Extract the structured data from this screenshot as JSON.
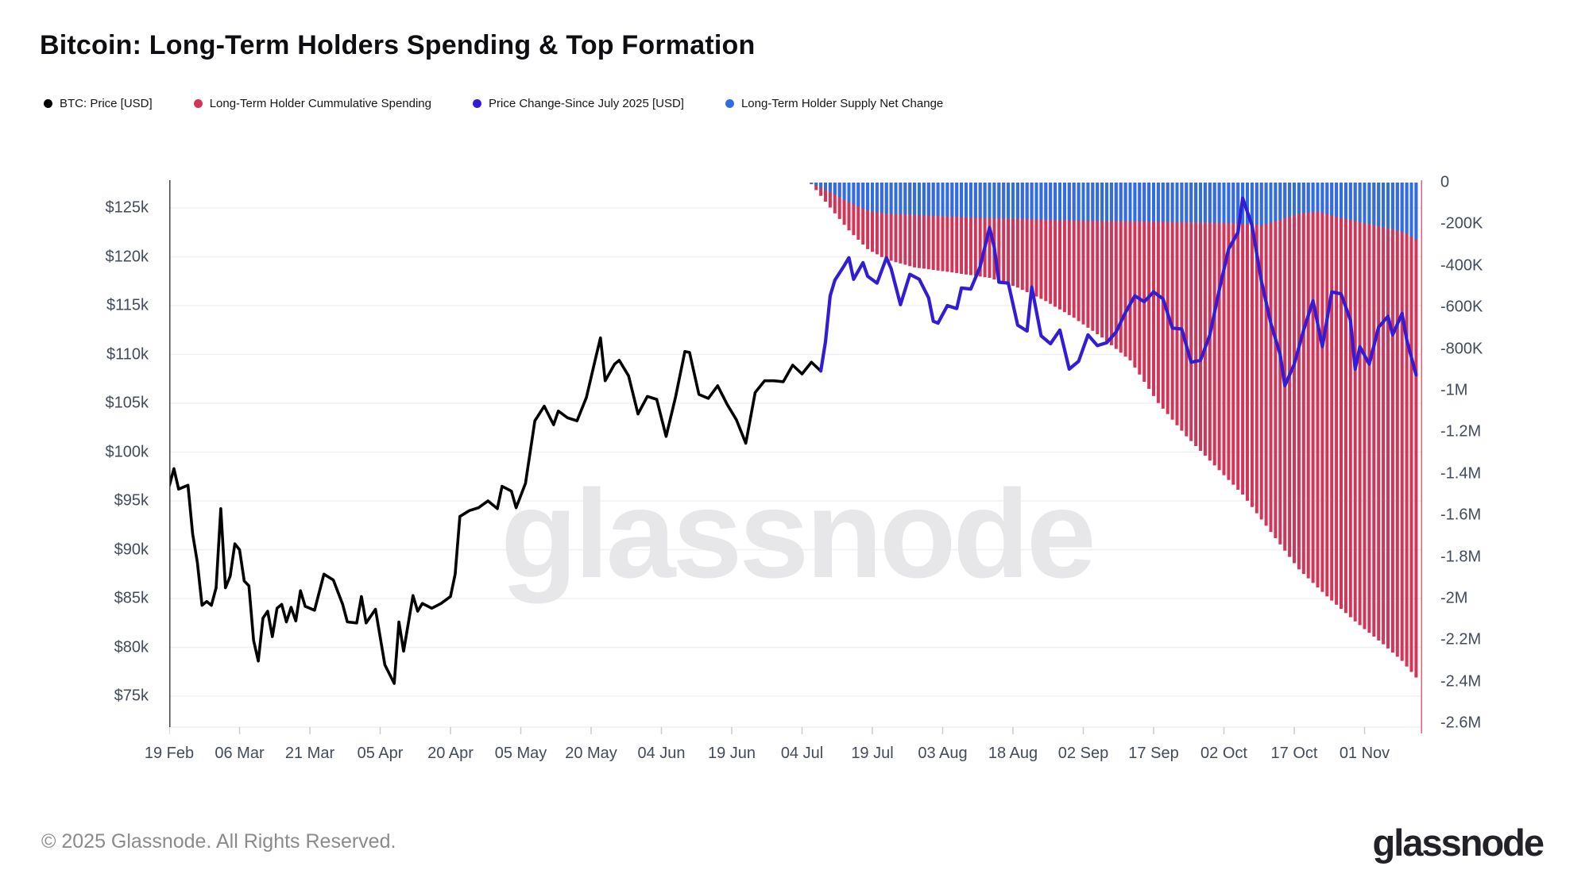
{
  "header": {
    "title": "Bitcoin: Long-Term Holders Spending & Top Formation"
  },
  "legend": {
    "items": [
      {
        "label": "BTC: Price [USD]",
        "color": "#000000"
      },
      {
        "label": "Long-Term Holder Cummulative Spending",
        "color": "#d23558"
      },
      {
        "label": "Price Change-Since July 2025 [USD]",
        "color": "#321cd4"
      },
      {
        "label": "Long-Term Holder Supply Net Change",
        "color": "#2e6ee4"
      }
    ]
  },
  "chart_data": {
    "type": "mixed",
    "title": "Bitcoin: Long-Term Holders Spending & Top Formation",
    "watermark": "glassnode",
    "grid": "horizontal-only",
    "colors": {
      "price": "#000000",
      "spending": "#d23558",
      "price_change": "#321cd4",
      "net_change": "#2e6ee4",
      "grid": "#f0f0f3",
      "axis_text": "#424b59",
      "axis_line": "#444444",
      "edge_marker": "#e0617a",
      "watermark": "#e7e7ea"
    },
    "left_axis": {
      "title": "BTC price in USD (thousands)",
      "tick_labels": [
        "$125k",
        "$120k",
        "$115k",
        "$110k",
        "$105k",
        "$100k",
        "$95k",
        "$90k",
        "$85k",
        "$80k",
        "$75k"
      ],
      "tick_values": [
        125,
        120,
        115,
        110,
        105,
        100,
        95,
        90,
        85,
        80,
        75
      ],
      "visible_range": [
        71.8,
        127.9
      ]
    },
    "right_axis": {
      "title": "BTC supply change",
      "tick_labels": [
        "0",
        "-200K",
        "-400K",
        "-600K",
        "-800K",
        "-1M",
        "-1.2M",
        "-1.4M",
        "-1.6M",
        "-1.8M",
        "-2M",
        "-2.2M",
        "-2.4M",
        "-2.6M"
      ],
      "tick_values": [
        0,
        -200,
        -400,
        -600,
        -800,
        -1000,
        -1200,
        -1400,
        -1600,
        -1800,
        -2000,
        -2200,
        -2400,
        -2600
      ],
      "unit": "K BTC"
    },
    "x_axis": {
      "ticks": [
        {
          "label": "19 Feb",
          "day": 0
        },
        {
          "label": "06 Mar",
          "day": 15
        },
        {
          "label": "21 Mar",
          "day": 30
        },
        {
          "label": "05 Apr",
          "day": 45
        },
        {
          "label": "20 Apr",
          "day": 60
        },
        {
          "label": "05 May",
          "day": 75
        },
        {
          "label": "20 May",
          "day": 90
        },
        {
          "label": "04 Jun",
          "day": 105
        },
        {
          "label": "19 Jun",
          "day": 120
        },
        {
          "label": "04 Jul",
          "day": 135
        },
        {
          "label": "19 Jul",
          "day": 150
        },
        {
          "label": "03 Aug",
          "day": 165
        },
        {
          "label": "18 Aug",
          "day": 180
        },
        {
          "label": "02 Sep",
          "day": 195
        },
        {
          "label": "17 Sep",
          "day": 210
        },
        {
          "label": "02 Oct",
          "day": 225
        },
        {
          "label": "17 Oct",
          "day": 240
        },
        {
          "label": "01 Nov",
          "day": 255
        }
      ],
      "day0_date": "19 Feb 2025"
    },
    "series": [
      {
        "name": "BTC: Price [USD]",
        "type": "line",
        "axis": "left",
        "color": "#000000",
        "points": [
          [
            0,
            96.5
          ],
          [
            1,
            98.3
          ],
          [
            2,
            96.2
          ],
          [
            4,
            96.6
          ],
          [
            5,
            91.6
          ],
          [
            6,
            88.7
          ],
          [
            7,
            84.3
          ],
          [
            8,
            84.7
          ],
          [
            9,
            84.3
          ],
          [
            10,
            86.1
          ],
          [
            11,
            94.2
          ],
          [
            12,
            86.1
          ],
          [
            13,
            87.3
          ],
          [
            14,
            90.6
          ],
          [
            15,
            90.0
          ],
          [
            16,
            86.8
          ],
          [
            17,
            86.3
          ],
          [
            18,
            80.7
          ],
          [
            19,
            78.6
          ],
          [
            20,
            83.0
          ],
          [
            21,
            83.7
          ],
          [
            22,
            81.1
          ],
          [
            23,
            84.0
          ],
          [
            24,
            84.4
          ],
          [
            25,
            82.6
          ],
          [
            26,
            84.1
          ],
          [
            27,
            82.7
          ],
          [
            28,
            85.8
          ],
          [
            29,
            84.2
          ],
          [
            31,
            83.8
          ],
          [
            33,
            87.5
          ],
          [
            35,
            86.9
          ],
          [
            37,
            84.4
          ],
          [
            38,
            82.6
          ],
          [
            40,
            82.5
          ],
          [
            41,
            85.2
          ],
          [
            42,
            82.5
          ],
          [
            44,
            83.9
          ],
          [
            46,
            78.2
          ],
          [
            48,
            76.3
          ],
          [
            49,
            82.6
          ],
          [
            50,
            79.6
          ],
          [
            52,
            85.3
          ],
          [
            53,
            83.7
          ],
          [
            54,
            84.5
          ],
          [
            56,
            84.0
          ],
          [
            58,
            84.5
          ],
          [
            60,
            85.2
          ],
          [
            61,
            87.5
          ],
          [
            62,
            93.4
          ],
          [
            64,
            94.0
          ],
          [
            66,
            94.3
          ],
          [
            68,
            95.0
          ],
          [
            70,
            94.2
          ],
          [
            71,
            96.5
          ],
          [
            73,
            96.0
          ],
          [
            74,
            94.3
          ],
          [
            76,
            96.8
          ],
          [
            78,
            103.2
          ],
          [
            80,
            104.7
          ],
          [
            82,
            102.8
          ],
          [
            83,
            104.2
          ],
          [
            85,
            103.5
          ],
          [
            87,
            103.2
          ],
          [
            89,
            105.6
          ],
          [
            91,
            109.7
          ],
          [
            92,
            111.7
          ],
          [
            93,
            107.3
          ],
          [
            95,
            109.0
          ],
          [
            96,
            109.4
          ],
          [
            98,
            107.8
          ],
          [
            100,
            103.9
          ],
          [
            102,
            105.7
          ],
          [
            104,
            105.4
          ],
          [
            106,
            101.6
          ],
          [
            108,
            105.6
          ],
          [
            110,
            110.3
          ],
          [
            111,
            110.2
          ],
          [
            113,
            105.9
          ],
          [
            115,
            105.5
          ],
          [
            117,
            106.8
          ],
          [
            119,
            104.9
          ],
          [
            121,
            103.3
          ],
          [
            123,
            100.9
          ],
          [
            125,
            106.1
          ],
          [
            127,
            107.3
          ],
          [
            129,
            107.3
          ],
          [
            131,
            107.2
          ],
          [
            133,
            108.9
          ],
          [
            135,
            108.0
          ],
          [
            137,
            109.2
          ],
          [
            139,
            108.3
          ]
        ]
      },
      {
        "name": "Price Change-Since July 2025 [USD]",
        "type": "line",
        "axis": "left",
        "color": "#321cd4",
        "points": [
          [
            139,
            108.3
          ],
          [
            140,
            111.3
          ],
          [
            141,
            116.0
          ],
          [
            142,
            117.6
          ],
          [
            144,
            119.1
          ],
          [
            145,
            119.9
          ],
          [
            146,
            117.7
          ],
          [
            148,
            119.4
          ],
          [
            149,
            118.0
          ],
          [
            151,
            117.3
          ],
          [
            153,
            119.9
          ],
          [
            154,
            118.8
          ],
          [
            156,
            115.1
          ],
          [
            158,
            118.2
          ],
          [
            160,
            117.7
          ],
          [
            162,
            115.8
          ],
          [
            163,
            113.4
          ],
          [
            164,
            113.2
          ],
          [
            166,
            115.0
          ],
          [
            168,
            114.7
          ],
          [
            169,
            116.8
          ],
          [
            171,
            116.7
          ],
          [
            173,
            119.0
          ],
          [
            175,
            123.0
          ],
          [
            176,
            121.0
          ],
          [
            177,
            117.4
          ],
          [
            179,
            117.3
          ],
          [
            181,
            113.0
          ],
          [
            183,
            112.4
          ],
          [
            184,
            116.9
          ],
          [
            186,
            111.9
          ],
          [
            188,
            111.1
          ],
          [
            190,
            112.5
          ],
          [
            192,
            108.5
          ],
          [
            194,
            109.3
          ],
          [
            196,
            112.0
          ],
          [
            198,
            110.9
          ],
          [
            200,
            111.2
          ],
          [
            202,
            112.3
          ],
          [
            204,
            114.3
          ],
          [
            206,
            116.0
          ],
          [
            208,
            115.4
          ],
          [
            210,
            116.4
          ],
          [
            212,
            115.7
          ],
          [
            214,
            112.7
          ],
          [
            216,
            112.6
          ],
          [
            218,
            109.2
          ],
          [
            220,
            109.4
          ],
          [
            222,
            112.0
          ],
          [
            224,
            116.6
          ],
          [
            226,
            120.8
          ],
          [
            228,
            122.5
          ],
          [
            229,
            126.0
          ],
          [
            231,
            123.2
          ],
          [
            233,
            117.5
          ],
          [
            235,
            113.2
          ],
          [
            237,
            110.0
          ],
          [
            238,
            106.8
          ],
          [
            240,
            109.0
          ],
          [
            242,
            112.5
          ],
          [
            244,
            115.5
          ],
          [
            246,
            110.8
          ],
          [
            248,
            116.4
          ],
          [
            250,
            116.2
          ],
          [
            252,
            113.5
          ],
          [
            253,
            108.5
          ],
          [
            254,
            110.8
          ],
          [
            256,
            109.0
          ],
          [
            258,
            112.8
          ],
          [
            260,
            113.9
          ],
          [
            261,
            112.0
          ],
          [
            263,
            114.2
          ],
          [
            264,
            111.5
          ],
          [
            266,
            107.9
          ]
        ]
      },
      {
        "name": "Long-Term Holder Cummulative Spending",
        "type": "bar",
        "axis": "right",
        "color": "#d23558",
        "start_day": 137,
        "frequency_days": 1,
        "unit": "K BTC",
        "values": [
          -8,
          -36,
          -64,
          -92,
          -120,
          -148,
          -175,
          -203,
          -230,
          -253,
          -275,
          -298,
          -320,
          -333,
          -345,
          -358,
          -370,
          -376,
          -383,
          -389,
          -395,
          -402,
          -408,
          -411,
          -414,
          -417,
          -420,
          -423,
          -426,
          -429,
          -432,
          -435,
          -439,
          -442,
          -445,
          -448,
          -452,
          -455,
          -458,
          -466,
          -474,
          -482,
          -489,
          -497,
          -505,
          -516,
          -527,
          -538,
          -548,
          -559,
          -570,
          -583,
          -597,
          -610,
          -623,
          -637,
          -650,
          -666,
          -682,
          -698,
          -713,
          -729,
          -745,
          -763,
          -782,
          -800,
          -818,
          -837,
          -855,
          -889,
          -923,
          -958,
          -992,
          -1026,
          -1060,
          -1087,
          -1113,
          -1140,
          -1167,
          -1193,
          -1220,
          -1243,
          -1267,
          -1290,
          -1313,
          -1337,
          -1360,
          -1383,
          -1407,
          -1430,
          -1453,
          -1477,
          -1500,
          -1530,
          -1560,
          -1590,
          -1620,
          -1650,
          -1680,
          -1710,
          -1740,
          -1770,
          -1800,
          -1830,
          -1860,
          -1882,
          -1903,
          -1925,
          -1947,
          -1968,
          -1990,
          -2010,
          -2030,
          -2050,
          -2070,
          -2090,
          -2110,
          -2128,
          -2147,
          -2165,
          -2183,
          -2202,
          -2220,
          -2240,
          -2260,
          -2280,
          -2300,
          -2327,
          -2353,
          -2380
        ]
      },
      {
        "name": "Long-Term Holder Supply Net Change",
        "type": "bar",
        "axis": "right",
        "color": "#2e6ee4",
        "start_day": 137,
        "frequency_days": 1,
        "unit": "K BTC",
        "values": [
          -5,
          -15,
          -25,
          -35,
          -45,
          -58,
          -70,
          -83,
          -95,
          -105,
          -115,
          -125,
          -135,
          -139,
          -143,
          -146,
          -150,
          -151,
          -152,
          -153,
          -154,
          -155,
          -156,
          -157,
          -158,
          -159,
          -160,
          -161,
          -162,
          -163,
          -164,
          -165,
          -166,
          -167,
          -168,
          -169,
          -170,
          -171,
          -171,
          -172,
          -172,
          -173,
          -173,
          -174,
          -174,
          -175,
          -175,
          -176,
          -177,
          -178,
          -179,
          -180,
          -180,
          -181,
          -181,
          -182,
          -182,
          -183,
          -183,
          -184,
          -184,
          -184,
          -185,
          -185,
          -185,
          -185,
          -186,
          -186,
          -186,
          -187,
          -187,
          -187,
          -188,
          -188,
          -188,
          -189,
          -189,
          -190,
          -190,
          -190,
          -190,
          -191,
          -191,
          -192,
          -192,
          -193,
          -193,
          -194,
          -194,
          -195,
          -195,
          -197,
          -198,
          -200,
          -202,
          -203,
          -205,
          -199,
          -193,
          -186,
          -180,
          -172,
          -165,
          -157,
          -150,
          -147,
          -145,
          -142,
          -140,
          -146,
          -152,
          -159,
          -165,
          -170,
          -175,
          -180,
          -185,
          -190,
          -195,
          -200,
          -205,
          -210,
          -215,
          -220,
          -225,
          -232,
          -238,
          -245,
          -260,
          -275
        ]
      }
    ]
  },
  "footer": {
    "copyright": "© 2025 Glassnode. All Rights Reserved.",
    "brand": "glassnode"
  }
}
